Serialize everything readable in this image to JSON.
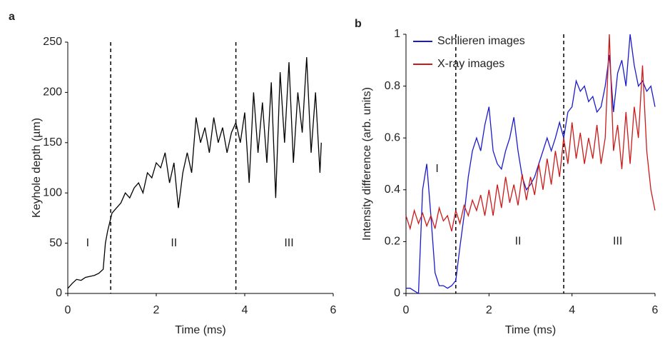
{
  "chart_data": [
    {
      "type": "line",
      "panel_label": "a",
      "xlabel": "Time (ms)",
      "ylabel": "Keyhole depth (µm)",
      "xlim": [
        0,
        6
      ],
      "xticks": [
        0,
        2,
        4,
        6
      ],
      "ylim": [
        0,
        250
      ],
      "yticks": [
        0,
        50,
        100,
        150,
        200,
        250
      ],
      "vlines": [
        0.97,
        3.8
      ],
      "annotations": [
        "I",
        "II",
        "III"
      ],
      "x": [
        0,
        0.1,
        0.2,
        0.3,
        0.4,
        0.5,
        0.6,
        0.7,
        0.8,
        0.85,
        0.9,
        1.0,
        1.1,
        1.2,
        1.3,
        1.4,
        1.5,
        1.6,
        1.7,
        1.8,
        1.9,
        2.0,
        2.1,
        2.2,
        2.3,
        2.4,
        2.5,
        2.6,
        2.7,
        2.8,
        2.9,
        3.0,
        3.1,
        3.2,
        3.3,
        3.4,
        3.5,
        3.6,
        3.7,
        3.8,
        3.9,
        4.0,
        4.1,
        4.2,
        4.3,
        4.4,
        4.5,
        4.6,
        4.7,
        4.8,
        4.9,
        5.0,
        5.1,
        5.2,
        5.3,
        5.4,
        5.5,
        5.6,
        5.7,
        5.73
      ],
      "series": [
        {
          "name": "Keyhole depth",
          "color": "#000000",
          "values": [
            5,
            10,
            14,
            13,
            16,
            17,
            18,
            20,
            24,
            50,
            62,
            80,
            85,
            90,
            100,
            95,
            105,
            110,
            100,
            120,
            115,
            130,
            125,
            140,
            110,
            130,
            85,
            120,
            140,
            120,
            175,
            150,
            165,
            140,
            175,
            150,
            165,
            140,
            160,
            170,
            150,
            180,
            110,
            200,
            140,
            190,
            130,
            210,
            95,
            220,
            150,
            230,
            130,
            200,
            160,
            235,
            140,
            200,
            120,
            150
          ]
        }
      ]
    },
    {
      "type": "line",
      "panel_label": "b",
      "xlabel": "Time (ms)",
      "ylabel": "Intensity difference (arb. units)",
      "xlim": [
        0,
        6
      ],
      "xticks": [
        0,
        2,
        4,
        6
      ],
      "ylim": [
        0,
        1
      ],
      "yticks": [
        0,
        0.2,
        0.4,
        0.6,
        0.8,
        1
      ],
      "vlines": [
        1.2,
        3.8
      ],
      "annotations": [
        "I",
        "II",
        "III"
      ],
      "legend": "upper left",
      "x": [
        0,
        0.1,
        0.2,
        0.3,
        0.4,
        0.5,
        0.6,
        0.7,
        0.8,
        0.9,
        1.0,
        1.1,
        1.2,
        1.3,
        1.4,
        1.5,
        1.6,
        1.7,
        1.8,
        1.9,
        2.0,
        2.1,
        2.2,
        2.3,
        2.4,
        2.5,
        2.6,
        2.7,
        2.8,
        2.9,
        3.0,
        3.1,
        3.2,
        3.3,
        3.4,
        3.5,
        3.6,
        3.7,
        3.8,
        3.9,
        4.0,
        4.1,
        4.2,
        4.3,
        4.4,
        4.5,
        4.6,
        4.7,
        4.8,
        4.9,
        5.0,
        5.1,
        5.2,
        5.3,
        5.4,
        5.5,
        5.6,
        5.7,
        5.8,
        5.9,
        6.0
      ],
      "series": [
        {
          "name": "Schlieren images",
          "color": "#1a1acc",
          "values": [
            0.02,
            0.02,
            0.01,
            0,
            0.4,
            0.5,
            0.3,
            0.08,
            0.03,
            0.03,
            0.02,
            0.03,
            0.05,
            0.18,
            0.3,
            0.45,
            0.55,
            0.6,
            0.55,
            0.65,
            0.72,
            0.55,
            0.5,
            0.48,
            0.55,
            0.6,
            0.68,
            0.55,
            0.45,
            0.4,
            0.42,
            0.45,
            0.5,
            0.55,
            0.6,
            0.55,
            0.6,
            0.66,
            0.6,
            0.7,
            0.72,
            0.82,
            0.78,
            0.8,
            0.74,
            0.76,
            0.7,
            0.72,
            0.8,
            0.92,
            0.7,
            0.85,
            0.9,
            0.8,
            1,
            0.88,
            0.8,
            0.82,
            0.78,
            0.8,
            0.72
          ]
        },
        {
          "name": "X-ray images",
          "color": "#cc1a1a",
          "values": [
            0.3,
            0.25,
            0.32,
            0.27,
            0.31,
            0.26,
            0.3,
            0.25,
            0.33,
            0.28,
            0.3,
            0.24,
            0.32,
            0.27,
            0.34,
            0.3,
            0.36,
            0.32,
            0.38,
            0.3,
            0.4,
            0.3,
            0.42,
            0.33,
            0.45,
            0.35,
            0.42,
            0.34,
            0.46,
            0.36,
            0.45,
            0.38,
            0.5,
            0.4,
            0.52,
            0.42,
            0.55,
            0.45,
            0.6,
            0.5,
            0.66,
            0.52,
            0.62,
            0.5,
            0.6,
            0.52,
            0.65,
            0.5,
            0.6,
            1,
            0.55,
            0.65,
            0.48,
            0.7,
            0.5,
            0.72,
            0.6,
            0.88,
            0.55,
            0.4,
            0.32
          ]
        }
      ]
    }
  ]
}
